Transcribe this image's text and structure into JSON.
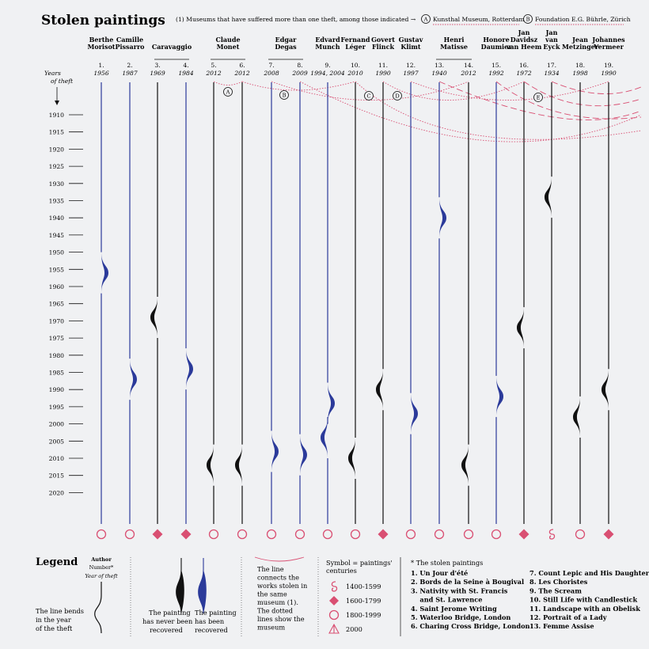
{
  "title": "Stolen paintings",
  "note": {
    "text": "(1) Museums that have suffered more than one theft, among those indicated →",
    "museums": [
      {
        "key": "A",
        "name": "Kunsthal Museum, Rotterdam"
      },
      {
        "key": "B",
        "name": "Foundation E.G. Bührle, Zürich"
      }
    ]
  },
  "years_of_theft_label": [
    "Years",
    "of theft"
  ],
  "axis_arrow": "↓",
  "colors": {
    "recovered": "#2b3a9a",
    "not_recovered": "#111111",
    "accent": "#d94f72",
    "background": "#f0f1f3"
  },
  "chart_data": {
    "type": "line",
    "ylim": [
      1905,
      2024
    ],
    "year_ticks": [
      "1910",
      "1915",
      "1920",
      "1925",
      "1930",
      "1935",
      "1940",
      "1945",
      "1950",
      "1955",
      "1960",
      "1965",
      "1970",
      "1975",
      "1980",
      "1985",
      "1990",
      "1995",
      "2000",
      "2005",
      "2010",
      "2015",
      "2020"
    ],
    "authors": [
      {
        "name": [
          "Berthe",
          "Morisot"
        ],
        "numbers": [
          "1."
        ]
      },
      {
        "name": [
          "Camille",
          "Pissarro"
        ],
        "numbers": [
          "2."
        ]
      },
      {
        "name": [
          "Caravaggio"
        ],
        "numbers": [
          "3.",
          "4."
        ]
      },
      {
        "name": [
          "Claude",
          "Monet"
        ],
        "numbers": [
          "5.",
          "6."
        ]
      },
      {
        "name": [
          "Edgar",
          "Degas"
        ],
        "numbers": [
          "7.",
          "8."
        ]
      },
      {
        "name": [
          "Edvard",
          "Munch"
        ],
        "numbers": [
          "9."
        ]
      },
      {
        "name": [
          "Fernand",
          "Léger"
        ],
        "numbers": [
          "10."
        ]
      },
      {
        "name": [
          "Govert",
          "Flinck"
        ],
        "numbers": [
          "11."
        ]
      },
      {
        "name": [
          "Gustav",
          "Klimt"
        ],
        "numbers": [
          "12."
        ]
      },
      {
        "name": [
          "Henri",
          "Matisse"
        ],
        "numbers": [
          "13.",
          "14."
        ]
      },
      {
        "name": [
          "Honore",
          "Daumier"
        ],
        "numbers": [
          "15."
        ]
      },
      {
        "name": [
          "Jan",
          "Davidsz",
          "van Heem"
        ],
        "numbers": [
          "16."
        ]
      },
      {
        "name": [
          "Jan",
          "van",
          "Eyck"
        ],
        "numbers": [
          "17."
        ]
      },
      {
        "name": [
          "Jean",
          "Metzinger"
        ],
        "numbers": [
          "18."
        ]
      },
      {
        "name": [
          "Johannes",
          "Vermeer"
        ],
        "numbers": [
          "19."
        ]
      }
    ],
    "paintings": [
      {
        "number": "1.",
        "year_label": "1956",
        "theft_year": 1956,
        "recovered": true,
        "century": "1800-1999"
      },
      {
        "number": "2.",
        "year_label": "1987",
        "theft_year": 1987,
        "recovered": true,
        "century": "1800-1999"
      },
      {
        "number": "3.",
        "year_label": "1969",
        "theft_year": 1969,
        "recovered": false,
        "century": "1600-1799"
      },
      {
        "number": "4.",
        "year_label": "1984",
        "theft_year": 1984,
        "recovered": true,
        "century": "1600-1799"
      },
      {
        "number": "5.",
        "year_label": "2012",
        "theft_year": 2012,
        "recovered": false,
        "century": "1800-1999"
      },
      {
        "number": "6.",
        "year_label": "2012",
        "theft_year": 2012,
        "recovered": false,
        "century": "1800-1999"
      },
      {
        "number": "7.",
        "year_label": "2008",
        "theft_year": 2008,
        "recovered": true,
        "century": "1800-1999"
      },
      {
        "number": "8.",
        "year_label": "2009",
        "theft_year": 2009,
        "recovered": true,
        "century": "1800-1999"
      },
      {
        "number": "9.",
        "year_label": "1994, 2004",
        "theft_year": 1994,
        "theft_year_2": 2004,
        "recovered": true,
        "century": "1800-1999"
      },
      {
        "number": "10.",
        "year_label": "2010",
        "theft_year": 2010,
        "recovered": false,
        "century": "1800-1999"
      },
      {
        "number": "11.",
        "year_label": "1990",
        "theft_year": 1990,
        "recovered": false,
        "century": "1600-1799"
      },
      {
        "number": "12.",
        "year_label": "1997",
        "theft_year": 1997,
        "recovered": true,
        "century": "1800-1999"
      },
      {
        "number": "13.",
        "year_label": "1940",
        "theft_year": 1940,
        "recovered": true,
        "century": "1800-1999"
      },
      {
        "number": "14.",
        "year_label": "2012",
        "theft_year": 2012,
        "recovered": false,
        "century": "1800-1999"
      },
      {
        "number": "15.",
        "year_label": "1992",
        "theft_year": 1992,
        "recovered": true,
        "century": "1800-1999"
      },
      {
        "number": "16.",
        "year_label": "1972",
        "theft_year": 1972,
        "recovered": false,
        "century": "1600-1799"
      },
      {
        "number": "17.",
        "year_label": "1934",
        "theft_year": 1934,
        "recovered": false,
        "century": "1400-1599"
      },
      {
        "number": "18.",
        "year_label": "1998",
        "theft_year": 1998,
        "recovered": false,
        "century": "1800-1999"
      },
      {
        "number": "19.",
        "year_label": "1990",
        "theft_year": 1990,
        "recovered": false,
        "century": "1600-1799"
      }
    ],
    "museum_markers": [
      "A",
      "B",
      "C",
      "D",
      "E"
    ]
  },
  "legend": {
    "heading": "Legend",
    "author_label": "Author",
    "number_label": "Number*",
    "year_label": "Year of theft",
    "bend_text": [
      "The line bends",
      "in the year",
      "of the theft"
    ],
    "not_recovered_text": [
      "The painting",
      "has never been",
      "recovered"
    ],
    "recovered_text": [
      "The painting",
      "has been",
      "recovered"
    ],
    "museum_text": [
      "The line",
      "connects the",
      "works stolen in",
      "the same",
      "museum (1).",
      "The dotted",
      "lines show the",
      "museum"
    ],
    "symbol_heading": [
      "Symbol = paintings'",
      "centuries"
    ],
    "symbols": [
      {
        "icon": "spiral-icon",
        "label": "1400-1599"
      },
      {
        "icon": "diamond-icon",
        "label": "1600-1799"
      },
      {
        "icon": "circle-icon",
        "label": "1800-1999"
      },
      {
        "icon": "triangle-icon",
        "label": "2000"
      }
    ]
  },
  "stolen_paintings": {
    "heading": "* The stolen paintings",
    "col1": [
      "1. Un Jour d'été",
      "2. Bords de la Seine à Bougival",
      "3. Nativity with St. Francis",
      "    and St. Lawrence",
      "4. Saint Jerome Writing",
      "5. Waterloo Bridge, London",
      "6. Charing Cross Bridge, London"
    ],
    "col2": [
      "7. Count Lepic and His Daughters",
      "8. Les Choristes",
      "9. The Scream",
      "10. Still Life with Candlestick",
      "11. Landscape with an Obelisk",
      "12. Portrait of a Lady",
      "13. Femme Assise"
    ]
  }
}
